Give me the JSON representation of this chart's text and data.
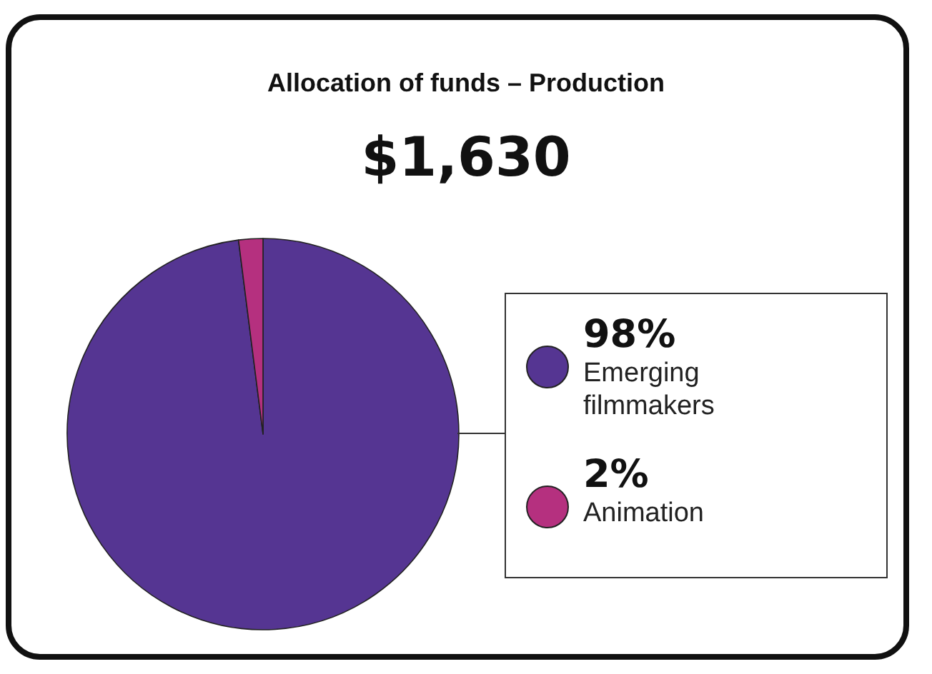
{
  "chart_data": {
    "type": "pie",
    "title": "Allocation of funds – Production",
    "subtitle": "$1,630",
    "categories": [
      "Emerging filmmakers",
      "Animation"
    ],
    "values": [
      98,
      2
    ],
    "colors": [
      "#553592",
      "#b5307f"
    ],
    "value_labels": [
      "98%",
      "2%"
    ],
    "legend": "right"
  }
}
